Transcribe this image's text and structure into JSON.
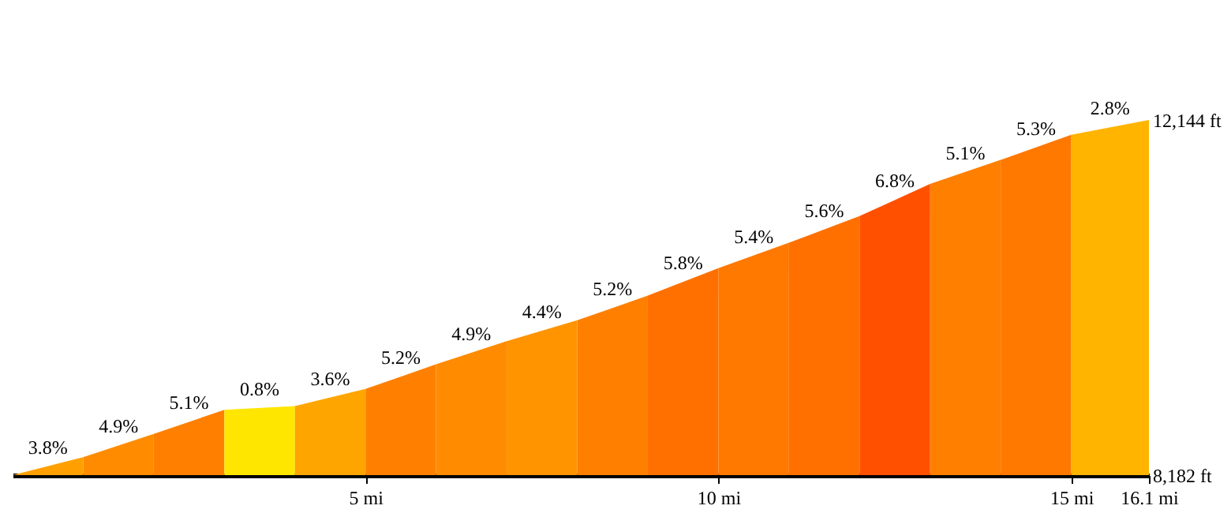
{
  "chart_data": {
    "type": "area",
    "xlim": [
      0,
      16.1
    ],
    "ylim": [
      8182,
      12144
    ],
    "xticks": [
      {
        "value": 5,
        "label": "5 mi"
      },
      {
        "value": 10,
        "label": "10 mi"
      },
      {
        "value": 15,
        "label": "15 mi"
      },
      {
        "value": 16.1,
        "label": "16.1 mi"
      }
    ],
    "yticks": [
      {
        "value": 8182,
        "label": "8,182 ft"
      },
      {
        "value": 12144,
        "label": "12,144 ft"
      }
    ],
    "grid": false,
    "legend": false,
    "series": [
      {
        "color": "#ffa000",
        "x": [
          0,
          1
        ],
        "values": [
          8182,
          8383
        ]
      },
      {
        "color": "#ff8c00",
        "x": [
          1,
          2
        ],
        "values": [
          8383,
          8642
        ]
      },
      {
        "color": "#ff8000",
        "x": [
          2,
          3
        ],
        "values": [
          8642,
          8911
        ]
      },
      {
        "color": "#ffe600",
        "x": [
          3,
          4
        ],
        "values": [
          8911,
          8953
        ]
      },
      {
        "color": "#ffa500",
        "x": [
          4,
          5
        ],
        "values": [
          8953,
          9143
        ]
      },
      {
        "color": "#ff8000",
        "x": [
          5,
          6
        ],
        "values": [
          9143,
          9418
        ]
      },
      {
        "color": "#ff8c00",
        "x": [
          6,
          7
        ],
        "values": [
          9418,
          9677
        ]
      },
      {
        "color": "#ff9400",
        "x": [
          7,
          8
        ],
        "values": [
          9677,
          9909
        ]
      },
      {
        "color": "#ff8000",
        "x": [
          8,
          9
        ],
        "values": [
          9909,
          10184
        ]
      },
      {
        "color": "#ff7000",
        "x": [
          9,
          10
        ],
        "values": [
          10184,
          10490
        ]
      },
      {
        "color": "#ff7800",
        "x": [
          10,
          11
        ],
        "values": [
          10490,
          10775
        ]
      },
      {
        "color": "#ff7000",
        "x": [
          11,
          12
        ],
        "values": [
          10775,
          11071
        ]
      },
      {
        "color": "#ff5000",
        "x": [
          12,
          13
        ],
        "values": [
          11071,
          11430
        ]
      },
      {
        "color": "#ff7f00",
        "x": [
          13,
          14
        ],
        "values": [
          11430,
          11699
        ]
      },
      {
        "color": "#ff7800",
        "x": [
          14,
          15
        ],
        "values": [
          11699,
          11979
        ]
      },
      {
        "color": "#ffb400",
        "x": [
          15,
          16.1
        ],
        "values": [
          11979,
          12144
        ]
      }
    ],
    "annotations": [
      {
        "text": "3.8%",
        "x": 0.5,
        "y": 8283
      },
      {
        "text": "4.9%",
        "x": 1.5,
        "y": 8513
      },
      {
        "text": "5.1%",
        "x": 2.5,
        "y": 8777
      },
      {
        "text": "0.8%",
        "x": 3.5,
        "y": 8932
      },
      {
        "text": "3.6%",
        "x": 4.5,
        "y": 9048
      },
      {
        "text": "5.2%",
        "x": 5.5,
        "y": 9281
      },
      {
        "text": "4.9%",
        "x": 6.5,
        "y": 9548
      },
      {
        "text": "4.4%",
        "x": 7.5,
        "y": 9793
      },
      {
        "text": "5.2%",
        "x": 8.5,
        "y": 10047
      },
      {
        "text": "5.8%",
        "x": 9.5,
        "y": 10337
      },
      {
        "text": "5.4%",
        "x": 10.5,
        "y": 10633
      },
      {
        "text": "5.6%",
        "x": 11.5,
        "y": 10923
      },
      {
        "text": "6.8%",
        "x": 12.5,
        "y": 11251
      },
      {
        "text": "5.1%",
        "x": 13.5,
        "y": 11565
      },
      {
        "text": "5.3%",
        "x": 14.5,
        "y": 11839
      },
      {
        "text": "2.8%",
        "x": 15.55,
        "y": 12062
      }
    ]
  }
}
